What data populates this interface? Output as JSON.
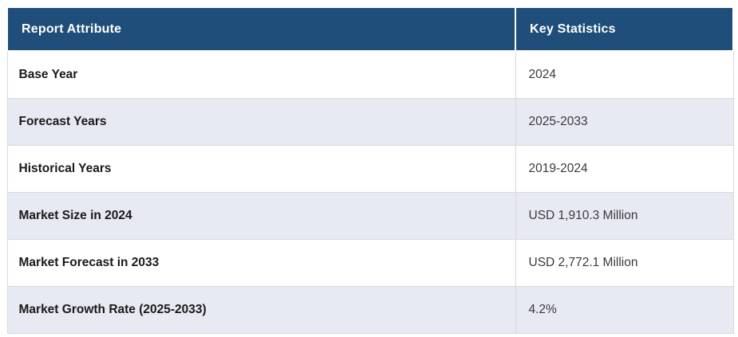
{
  "chart_data": {
    "type": "table",
    "title": "",
    "columns": [
      {
        "label": "Report Attribute"
      },
      {
        "label": "Key Statistics"
      }
    ],
    "rows": [
      {
        "attribute": "Base Year",
        "value": "2024"
      },
      {
        "attribute": "Forecast Years",
        "value": "2025-2033"
      },
      {
        "attribute": "Historical Years",
        "value": "2019-2024"
      },
      {
        "attribute": "Market Size in 2024",
        "value": "USD 1,910.3 Million"
      },
      {
        "attribute": "Market Forecast in 2033",
        "value": "USD 2,772.1 Million"
      },
      {
        "attribute": "Market Growth Rate (2025-2033)",
        "value": "4.2%"
      }
    ]
  },
  "colors": {
    "header_bg": "#1F4E7A",
    "header_text": "#FFFFFF",
    "row_bg": "#FFFFFF",
    "alt_row_bg": "#E7E9F3",
    "border": "#D8D8DF",
    "attribute_text": "#1A1A1A",
    "value_text": "#3B3B3B"
  }
}
